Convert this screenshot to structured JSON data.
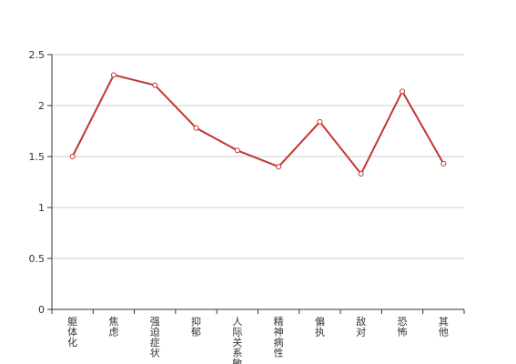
{
  "chart_data": {
    "type": "line",
    "categories": [
      "躯体化",
      "焦虑",
      "强迫症状",
      "抑郁",
      "人际关系敏感",
      "精神病性",
      "偏执",
      "敌对",
      "恐怖",
      "其他"
    ],
    "series": [
      {
        "name": "",
        "color": "#c23531",
        "values": [
          1.5,
          2.3,
          2.2,
          1.78,
          1.56,
          1.4,
          1.84,
          1.33,
          2.14,
          1.43
        ]
      }
    ],
    "ylim": [
      0,
      2.5
    ],
    "yticks": [
      0,
      0.5,
      1,
      1.5,
      2,
      2.5
    ],
    "grid": true
  }
}
